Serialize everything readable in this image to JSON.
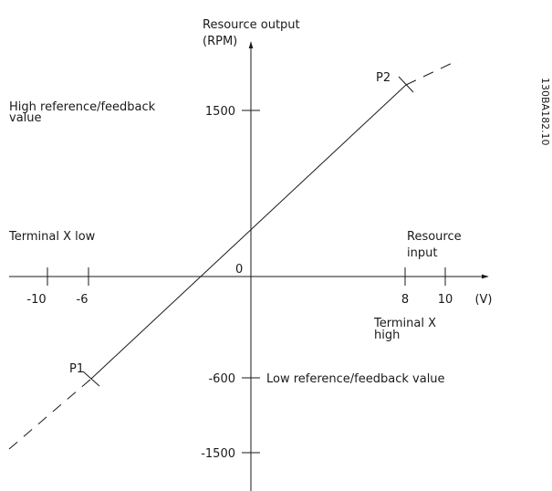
{
  "axes": {
    "y_title": [
      "Resource output",
      "(RPM)"
    ],
    "x_title": [
      "Resource",
      "input"
    ],
    "x_unit": "(V)",
    "origin": "0",
    "y_ticks": [
      "1500",
      "-600",
      "-1500"
    ],
    "x_ticks": [
      "-10",
      "-6",
      "8",
      "10"
    ]
  },
  "labels": {
    "high_ref": [
      "High reference/feedback",
      "value"
    ],
    "low_ref": "Low reference/feedback value",
    "terminal_low": "Terminal X low",
    "terminal_high": [
      "Terminal X",
      "high"
    ],
    "p1": "P1",
    "p2": "P2",
    "figure_id": "130BA182.10"
  }
}
